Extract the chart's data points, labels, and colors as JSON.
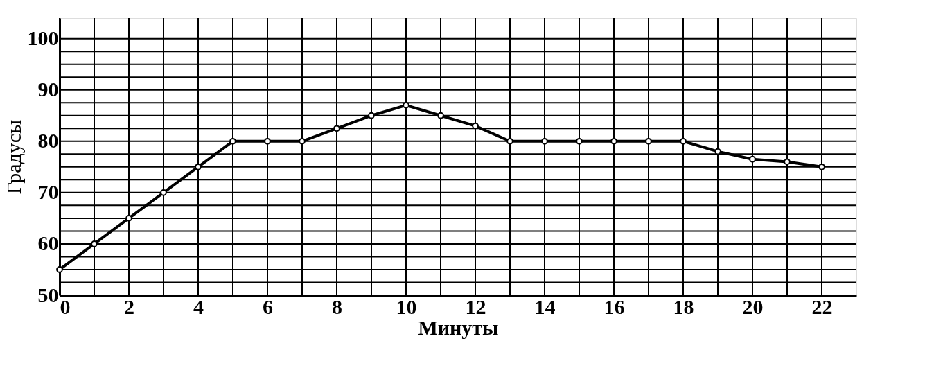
{
  "chart_data": {
    "type": "line",
    "xlabel": "Минуты",
    "ylabel": "Градусы",
    "x": [
      0,
      1,
      2,
      3,
      4,
      5,
      6,
      7,
      8,
      9,
      10,
      11,
      12,
      13,
      14,
      15,
      16,
      17,
      18,
      19,
      20,
      21,
      22
    ],
    "series": [
      {
        "color": "#000000",
        "values": [
          55,
          60,
          65,
          70,
          75,
          80,
          80,
          80,
          82.5,
          85,
          87,
          85,
          83,
          80,
          80,
          80,
          80,
          80,
          80,
          78,
          76.5,
          76,
          75
        ]
      }
    ],
    "xlim": [
      0,
      23
    ],
    "ylim": [
      50,
      104
    ],
    "xticks": [
      0,
      {
        "value": 1,
        "label": null
      },
      2,
      {
        "value": 3,
        "label": null
      },
      4,
      {
        "value": 5,
        "label": null
      },
      6,
      {
        "value": 7,
        "label": null
      },
      8,
      {
        "value": 9,
        "label": null
      },
      10,
      {
        "value": 11,
        "label": null
      },
      12,
      {
        "value": 13,
        "label": null
      },
      14,
      {
        "value": 15,
        "label": null
      },
      16,
      {
        "value": 17,
        "label": null
      },
      18,
      {
        "value": 19,
        "label": null
      },
      20,
      {
        "value": 21,
        "label": null
      },
      22
    ],
    "yticks": [
      50,
      {
        "value": 52.5,
        "label": null
      },
      {
        "value": 55,
        "label": null
      },
      {
        "value": 57.5,
        "label": null
      },
      60,
      {
        "value": 62.5,
        "label": null
      },
      {
        "value": 65,
        "label": null
      },
      {
        "value": 67.5,
        "label": null
      },
      70,
      {
        "value": 72.5,
        "label": null
      },
      {
        "value": 75,
        "label": null
      },
      {
        "value": 77.5,
        "label": null
      },
      80,
      {
        "value": 82.5,
        "label": null
      },
      {
        "value": 85,
        "label": null
      },
      {
        "value": 87.5,
        "label": null
      },
      90,
      {
        "value": 92.5,
        "label": null
      },
      {
        "value": 95,
        "label": null
      },
      {
        "value": 97.5,
        "label": null
      },
      100
    ],
    "grid": true,
    "marker": "circle",
    "line_style": "solid"
  }
}
